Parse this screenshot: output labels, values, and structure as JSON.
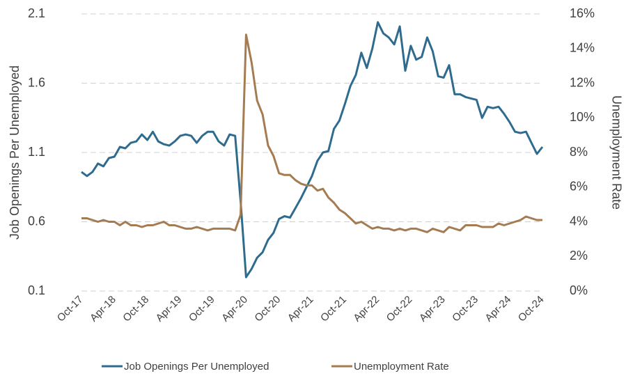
{
  "chart_data": {
    "type": "line",
    "y_label": "Job Openings Per Unemployed",
    "y2_label": "Unemployment Rate",
    "categories": [
      "Oct-17",
      null,
      null,
      null,
      null,
      null,
      "Apr-18",
      null,
      null,
      null,
      null,
      null,
      "Oct-18",
      null,
      null,
      null,
      null,
      null,
      "Apr-19",
      null,
      null,
      null,
      null,
      null,
      "Oct-19",
      null,
      null,
      null,
      null,
      null,
      "Apr-20",
      null,
      null,
      null,
      null,
      null,
      "Oct-20",
      null,
      null,
      null,
      null,
      null,
      "Apr-21",
      null,
      null,
      null,
      null,
      null,
      "Oct-21",
      null,
      null,
      null,
      null,
      null,
      "Apr-22",
      null,
      null,
      null,
      null,
      null,
      "Oct-22",
      null,
      null,
      null,
      null,
      null,
      "Apr-23",
      null,
      null,
      null,
      null,
      null,
      "Oct-23",
      null,
      null,
      null,
      null,
      null,
      "Apr-24",
      null,
      null,
      null,
      null,
      null,
      "Oct-24"
    ],
    "series": [
      {
        "name": "Job Openings Per Unemployed",
        "color": "#2e6b8e",
        "axis": "y",
        "values": [
          0.96,
          0.93,
          0.96,
          1.02,
          1.0,
          1.06,
          1.07,
          1.14,
          1.13,
          1.17,
          1.18,
          1.23,
          1.19,
          1.25,
          1.18,
          1.16,
          1.15,
          1.18,
          1.22,
          1.23,
          1.22,
          1.17,
          1.22,
          1.25,
          1.25,
          1.18,
          1.15,
          1.23,
          1.22,
          0.75,
          0.2,
          0.26,
          0.34,
          0.38,
          0.47,
          0.52,
          0.62,
          0.64,
          0.63,
          0.7,
          0.77,
          0.85,
          0.93,
          1.04,
          1.1,
          1.11,
          1.27,
          1.33,
          1.45,
          1.58,
          1.66,
          1.82,
          1.71,
          1.85,
          2.04,
          1.96,
          1.93,
          1.88,
          2.01,
          1.69,
          1.87,
          1.77,
          1.79,
          1.93,
          1.83,
          1.65,
          1.64,
          1.73,
          1.52,
          1.52,
          1.5,
          1.49,
          1.48,
          1.35,
          1.43,
          1.42,
          1.43,
          1.38,
          1.32,
          1.25,
          1.24,
          1.25,
          1.17,
          1.09,
          1.14
        ]
      },
      {
        "name": "Unemployment Rate",
        "color": "#a57c52",
        "axis": "y2",
        "values": [
          4.2,
          4.2,
          4.1,
          4.0,
          4.1,
          4.0,
          4.0,
          3.8,
          4.0,
          3.8,
          3.8,
          3.7,
          3.8,
          3.8,
          3.9,
          4.0,
          3.8,
          3.8,
          3.7,
          3.6,
          3.6,
          3.7,
          3.6,
          3.5,
          3.6,
          3.6,
          3.6,
          3.6,
          3.5,
          4.4,
          14.8,
          13.2,
          11.0,
          10.2,
          8.4,
          7.8,
          6.8,
          6.7,
          6.7,
          6.4,
          6.2,
          6.1,
          6.1,
          5.8,
          5.9,
          5.4,
          5.1,
          4.7,
          4.5,
          4.2,
          3.9,
          4.0,
          3.8,
          3.6,
          3.7,
          3.6,
          3.6,
          3.5,
          3.6,
          3.5,
          3.6,
          3.6,
          3.5,
          3.4,
          3.6,
          3.5,
          3.4,
          3.7,
          3.6,
          3.5,
          3.8,
          3.8,
          3.8,
          3.7,
          3.7,
          3.7,
          3.9,
          3.8,
          3.9,
          4.0,
          4.1,
          4.3,
          4.2,
          4.1,
          4.1
        ]
      }
    ],
    "ylim": [
      0.1,
      2.1
    ],
    "yticks": [
      0.1,
      0.6,
      1.1,
      1.6,
      2.1
    ],
    "y2lim": [
      0,
      16
    ],
    "y2ticks": [
      {
        "value": 0,
        "label": "0%"
      },
      {
        "value": 2,
        "label": "2%"
      },
      {
        "value": 4,
        "label": "4%"
      },
      {
        "value": 6,
        "label": "6%"
      },
      {
        "value": 8,
        "label": "8%"
      },
      {
        "value": 10,
        "label": "10%"
      },
      {
        "value": 12,
        "label": "12%"
      },
      {
        "value": 14,
        "label": "14%"
      },
      {
        "value": 16,
        "label": "16%"
      }
    ],
    "grid": true,
    "legend": "bottom"
  }
}
